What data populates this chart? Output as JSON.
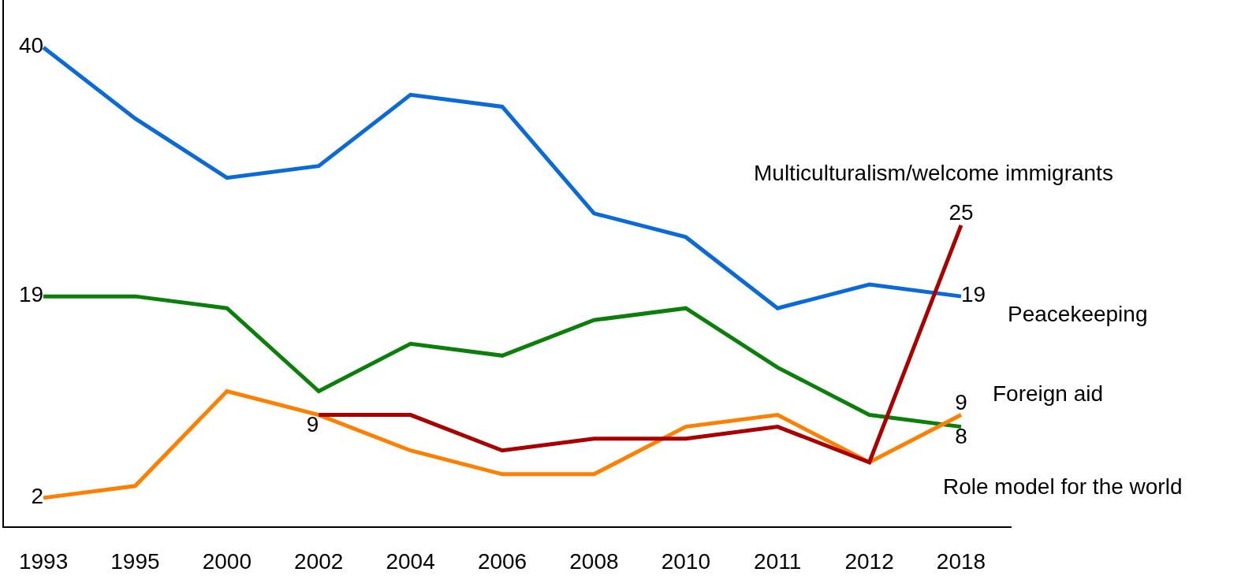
{
  "chart_data": {
    "type": "line",
    "categories": [
      "1993",
      "1995",
      "2000",
      "2002",
      "2004",
      "2006",
      "2008",
      "2010",
      "2011",
      "2012",
      "2018"
    ],
    "series": [
      {
        "name": "Peacekeeping",
        "color": "#0a6ad8",
        "values": [
          40,
          34,
          29,
          30,
          36,
          35,
          26,
          24,
          18,
          20,
          19
        ],
        "value_labels": [
          "40",
          null,
          null,
          null,
          null,
          null,
          null,
          null,
          null,
          null,
          "19"
        ]
      },
      {
        "name": "Foreign aid",
        "color": "#0a800a",
        "values": [
          19,
          19,
          18,
          11,
          15,
          14,
          17,
          18,
          13,
          9,
          8
        ],
        "value_labels": [
          "19",
          null,
          null,
          null,
          null,
          null,
          null,
          null,
          null,
          null,
          "8"
        ]
      },
      {
        "name": "Role model for the world",
        "color": "#ff8000",
        "values": [
          2,
          3,
          11,
          9,
          6,
          4,
          4,
          8,
          9,
          5,
          9
        ],
        "value_labels": [
          "2",
          null,
          null,
          null,
          null,
          null,
          null,
          null,
          null,
          null,
          "9"
        ]
      },
      {
        "name": "Multiculturalism/welcome immigrants",
        "color": "#aa0000",
        "values": [
          null,
          null,
          null,
          9,
          9,
          6,
          7,
          7,
          8,
          5,
          25
        ],
        "value_labels": [
          null,
          null,
          null,
          "9",
          null,
          null,
          null,
          null,
          null,
          null,
          "25"
        ]
      }
    ],
    "ylim": [
      -0.4,
      44
    ],
    "legend": false,
    "grid": false,
    "marker": "none",
    "line_style": "solid"
  }
}
